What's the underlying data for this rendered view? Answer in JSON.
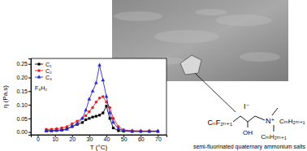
{
  "chart_data": {
    "type": "line",
    "x_label": "T (°C)",
    "y_label": "η (Pa.s)",
    "annotation": "F₈H₂",
    "x": [
      5,
      8,
      11,
      14,
      17,
      20,
      23,
      26,
      28,
      30,
      32,
      34,
      36,
      38,
      40,
      42,
      44,
      47,
      50,
      55,
      60,
      65,
      70
    ],
    "series": [
      {
        "name": "C₁",
        "color": "#000000",
        "marker": "square",
        "line_style": "solid",
        "values": [
          0.005,
          0.005,
          0.006,
          0.008,
          0.012,
          0.02,
          0.028,
          0.035,
          0.045,
          0.05,
          0.055,
          0.058,
          0.062,
          0.07,
          0.095,
          0.05,
          0.015,
          0.005,
          0.003,
          0.002,
          0.002,
          0.002,
          0.002
        ]
      },
      {
        "name": "C₂",
        "color": "#e8201c",
        "marker": "circle",
        "line_style": "solid",
        "values": [
          0.01,
          0.01,
          0.012,
          0.015,
          0.02,
          0.03,
          0.04,
          0.05,
          0.06,
          0.075,
          0.09,
          0.11,
          0.125,
          0.13,
          0.11,
          0.09,
          0.05,
          0.02,
          0.008,
          0.005,
          0.004,
          0.004,
          0.004
        ]
      },
      {
        "name": "C₃",
        "color": "#2a2ad8",
        "marker": "triangle",
        "line_style": "solid",
        "values": [
          0.003,
          0.004,
          0.005,
          0.006,
          0.01,
          0.02,
          0.03,
          0.05,
          0.08,
          0.12,
          0.15,
          0.18,
          0.245,
          0.19,
          0.13,
          0.07,
          0.035,
          0.012,
          0.006,
          0.004,
          0.003,
          0.003,
          0.003
        ]
      }
    ],
    "xlim": [
      -4,
      75
    ],
    "xticks": [
      0,
      10,
      20,
      30,
      40,
      50,
      60,
      70
    ],
    "ylim": [
      -0.01,
      0.27
    ],
    "yticks": [
      {
        "value": 0,
        "label": "0.00"
      },
      {
        "value": 0.05,
        "label": "0.05"
      },
      {
        "value": 0.1,
        "label": "0.10"
      },
      {
        "value": 0.15,
        "label": "0.15"
      },
      {
        "value": 0.2,
        "label": "0.20"
      },
      {
        "value": 0.25,
        "label": "0.25"
      }
    ],
    "legend": "upper left",
    "grid": false
  },
  "structure": {
    "counter_ion": "I⁻",
    "fluoro_chain": "CₙF₂ₙ₊₁",
    "hydroxyl": "OH",
    "nitrogen": "N⁺",
    "alkyl_right": "CₘH₂ₘ₊₁",
    "alkyl_bottom": "CₘH₂ₘ₊₁",
    "caption": "semi-fluorinated quaternary ammonium salts"
  }
}
